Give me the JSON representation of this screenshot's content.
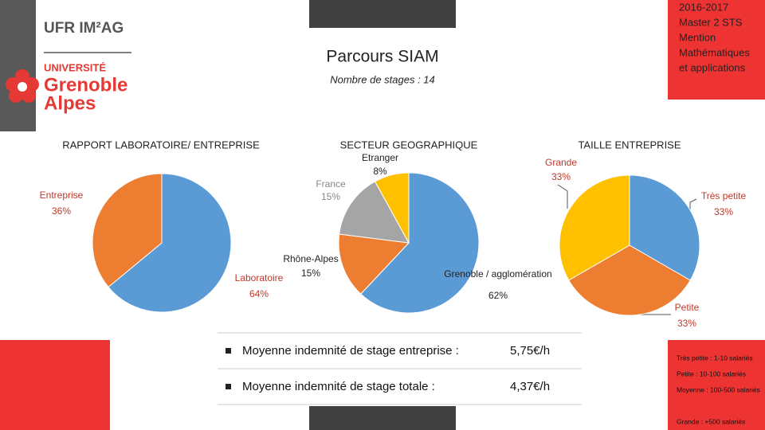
{
  "logo": {
    "faculty": "UFR IM²AG",
    "university": [
      "UNIVERSITÉ",
      "Grenoble",
      "Alpes"
    ]
  },
  "program": [
    "2016-2017",
    "Master 2 STS",
    "Mention",
    "Mathématiques",
    "et applications"
  ],
  "title": "Parcours SIAM",
  "subtitle": "Nombre de stages : 14",
  "chart_data": [
    {
      "type": "pie",
      "title": "RAPPORT LABORATOIRE/ ENTREPRISE",
      "categories": [
        "Laboratoire",
        "Entreprise"
      ],
      "values": [
        64,
        36
      ],
      "value_labels": [
        "64%",
        "36%"
      ],
      "colors": [
        "#5b9bd5",
        "#ed7d31"
      ]
    },
    {
      "type": "pie",
      "title": "SECTEUR GEOGRAPHIQUE",
      "categories": [
        "Grenoble / agglomération",
        "Rhône-Alpes",
        "France",
        "Etranger"
      ],
      "values": [
        62,
        15,
        15,
        8
      ],
      "value_labels": [
        "62%",
        "15%",
        "15%",
        "8%"
      ],
      "colors": [
        "#5b9bd5",
        "#ed7d31",
        "#a5a5a5",
        "#ffc000"
      ]
    },
    {
      "type": "pie",
      "title": "TAILLE ENTREPRISE",
      "categories": [
        "Très petite",
        "Petite",
        "Grande"
      ],
      "values": [
        33,
        33,
        33
      ],
      "value_labels": [
        "33%",
        "33%",
        "33%"
      ],
      "colors": [
        "#5b9bd5",
        "#ed7d31",
        "#ffc000"
      ]
    }
  ],
  "stats": [
    {
      "label": "Moyenne indemnité de stage entreprise :",
      "value": "5,75€/h"
    },
    {
      "label": "Moyenne indemnité de stage totale :",
      "value": "4,37€/h"
    }
  ],
  "size_legend": [
    "Très petite : 1-10 salariés",
    "Petite : 10-100 salariés",
    "Moyenne : 100-500 salariés",
    "Grande : +500 salariés"
  ]
}
